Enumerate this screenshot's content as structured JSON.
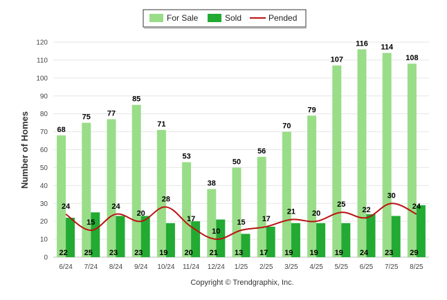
{
  "chart_data": {
    "type": "bar",
    "categories": [
      "6/24",
      "7/24",
      "8/24",
      "9/24",
      "10/24",
      "11/24",
      "12/24",
      "1/25",
      "2/25",
      "3/25",
      "4/25",
      "5/25",
      "6/25",
      "7/25",
      "8/25"
    ],
    "series": [
      {
        "name": "For Sale",
        "type": "bar",
        "color": "#99dd88",
        "values": [
          68,
          75,
          77,
          85,
          71,
          53,
          38,
          50,
          56,
          70,
          79,
          107,
          116,
          114,
          108
        ]
      },
      {
        "name": "Sold",
        "type": "bar",
        "color": "#22aa33",
        "values": [
          22,
          25,
          23,
          23,
          19,
          20,
          21,
          13,
          17,
          19,
          19,
          19,
          24,
          23,
          29
        ]
      },
      {
        "name": "Pended",
        "type": "line",
        "color": "#bb1111",
        "values": [
          24,
          15,
          24,
          20,
          28,
          17,
          10,
          15,
          17,
          21,
          20,
          25,
          22,
          30,
          24
        ]
      }
    ],
    "ylabel": "Number of Homes",
    "xlabel": "",
    "ylim": [
      0,
      120
    ],
    "yticks": [
      0,
      10,
      20,
      30,
      40,
      50,
      60,
      70,
      80,
      90,
      100,
      110,
      120
    ],
    "grid": true,
    "legend_position": "top-center"
  },
  "footer": {
    "copyright": "Copyright © Trendgraphix, Inc."
  }
}
